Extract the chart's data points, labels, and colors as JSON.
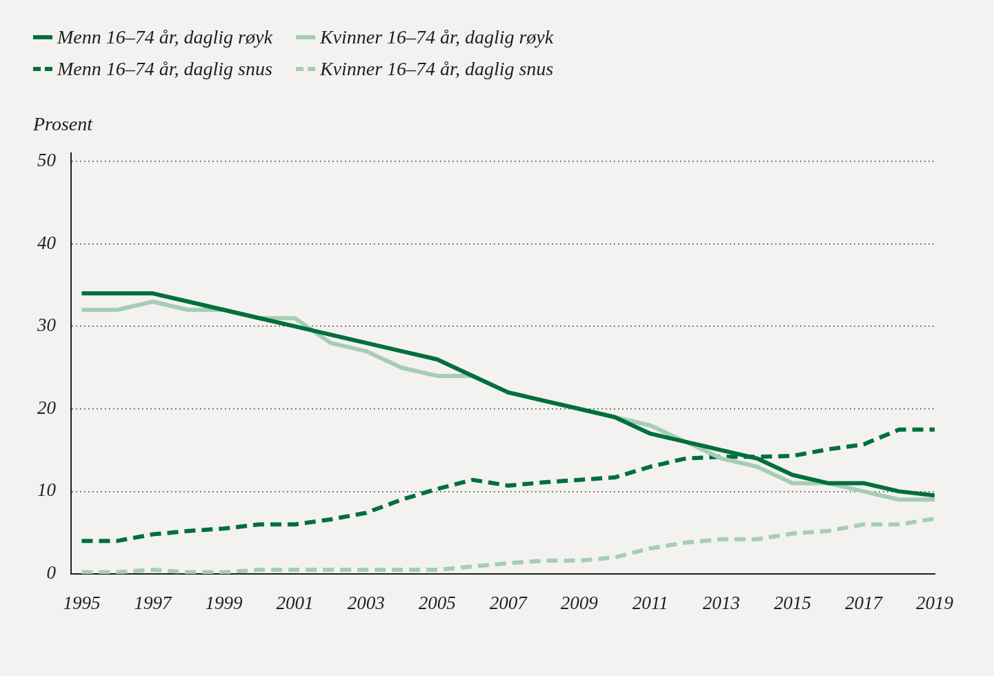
{
  "chart_data": {
    "type": "line",
    "ylabel": "Prosent",
    "legend": "top left",
    "grid": "y",
    "marker": "none",
    "x": [
      1995,
      1996,
      1997,
      1998,
      1999,
      2000,
      2001,
      2002,
      2003,
      2004,
      2005,
      2006,
      2007,
      2008,
      2009,
      2010,
      2011,
      2012,
      2013,
      2014,
      2015,
      2016,
      2017,
      2018,
      2019
    ],
    "xlim": [
      1994.7,
      2019
    ],
    "xticks": [
      1995,
      1997,
      1999,
      2001,
      2003,
      2005,
      2007,
      2009,
      2011,
      2013,
      2015,
      2017,
      2019
    ],
    "ylim": [
      0,
      51
    ],
    "yticks": [
      0,
      10,
      20,
      30,
      40,
      50
    ],
    "series": [
      {
        "name": "Menn 16–74 år, daglig røyk",
        "color": "#006f3c",
        "line_style": "solid",
        "values": [
          34,
          34,
          34,
          33,
          32,
          31,
          30,
          29,
          28,
          27,
          26,
          24,
          22,
          21,
          20,
          19,
          17,
          16,
          15,
          14,
          12,
          11,
          11,
          10,
          9.5
        ]
      },
      {
        "name": "Kvinner 16–74 år, daglig røyk",
        "color": "#a6cdb4",
        "line_style": "solid",
        "values": [
          32,
          32,
          33,
          32,
          32,
          31,
          31,
          28,
          27,
          25,
          24,
          24,
          22,
          21,
          20,
          19,
          18,
          16,
          14,
          13,
          11,
          11,
          10,
          9,
          9
        ]
      },
      {
        "name": "Menn 16–74 år, daglig snus",
        "color": "#006f3c",
        "line_style": "dashed",
        "values": [
          4,
          4,
          4.8,
          5.2,
          5.5,
          6,
          6,
          6.6,
          7.4,
          9,
          10.3,
          11.4,
          10.7,
          11.1,
          11.4,
          11.7,
          13,
          14,
          14.2,
          14.2,
          14.3,
          15.1,
          15.7,
          17.5,
          17.5
        ]
      },
      {
        "name": "Kvinner 16–74 år, daglig snus",
        "color": "#a6cdb4",
        "line_style": "dashed",
        "values": [
          0.2,
          0.2,
          0.5,
          0.2,
          0.2,
          0.5,
          0.5,
          0.5,
          0.5,
          0.5,
          0.5,
          0.9,
          1.3,
          1.6,
          1.6,
          2,
          3.1,
          3.8,
          4.2,
          4.2,
          4.9,
          5.2,
          6,
          6,
          6.7
        ]
      }
    ]
  }
}
